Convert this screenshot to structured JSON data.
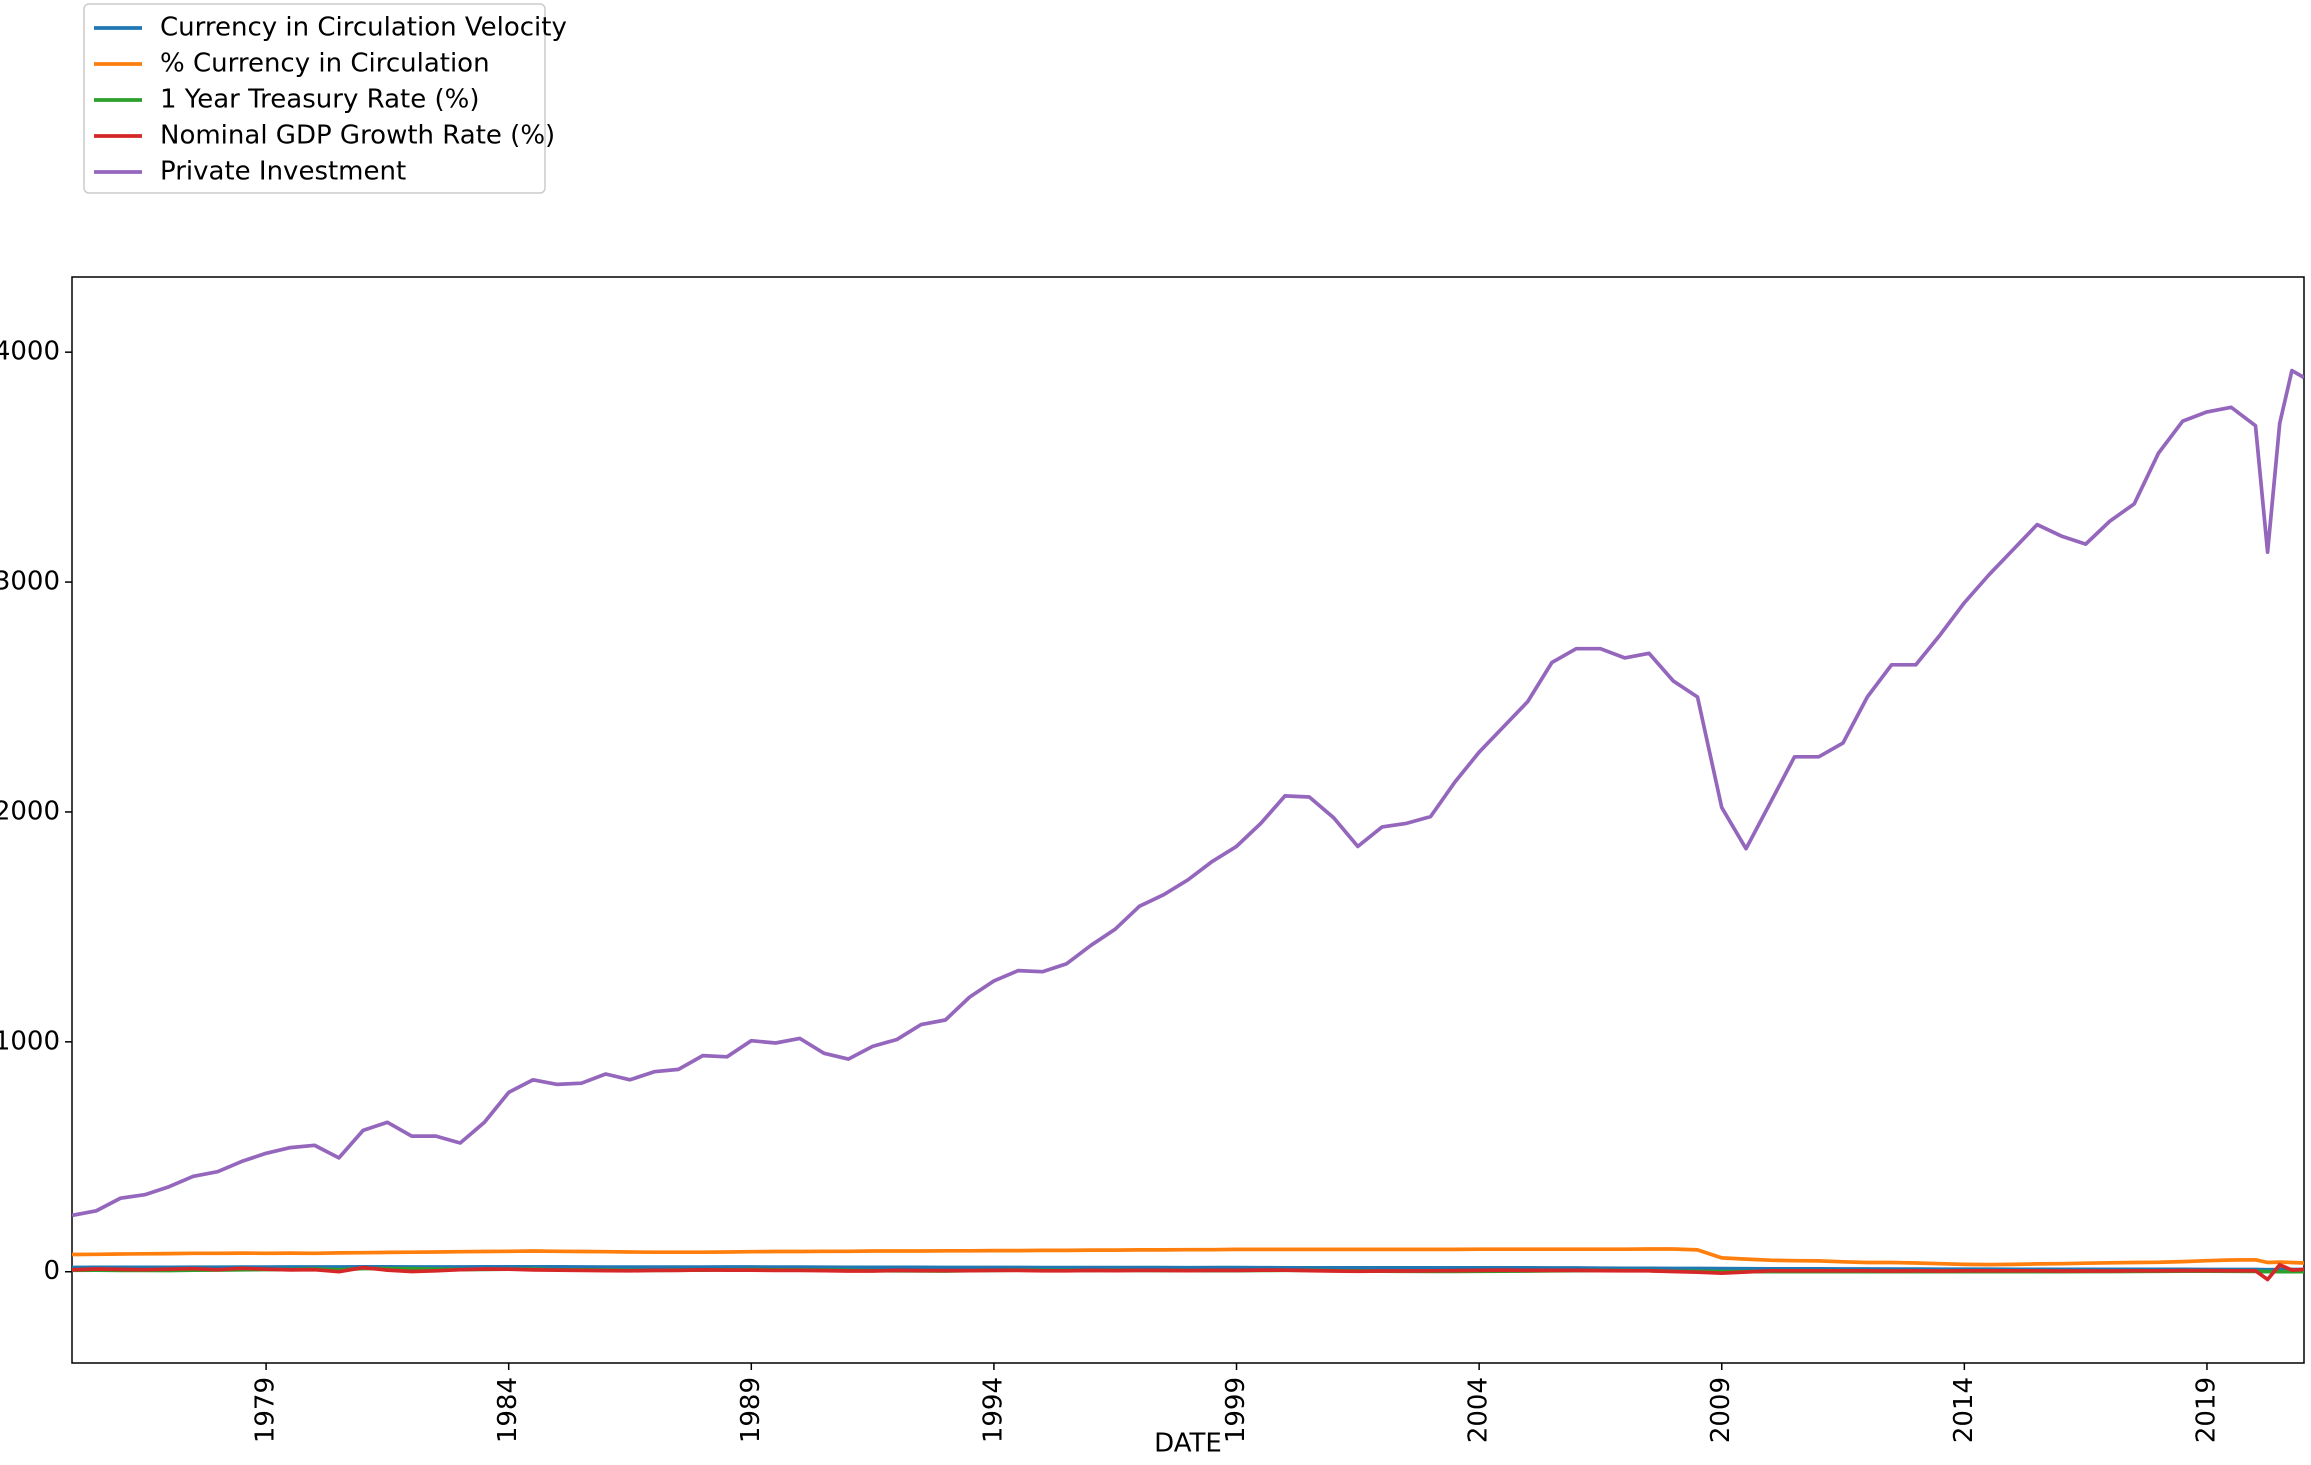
{
  "chart_data": {
    "type": "line",
    "x_label": "DATE",
    "legend": "upper left",
    "x": [
      1975,
      1975.5,
      1976,
      1976.5,
      1977,
      1977.5,
      1978,
      1978.5,
      1979,
      1979.5,
      1980,
      1980.5,
      1981,
      1981.5,
      1982,
      1982.5,
      1983,
      1983.5,
      1984,
      1984.5,
      1985,
      1985.5,
      1986,
      1986.5,
      1987,
      1987.5,
      1988,
      1988.5,
      1989,
      1989.5,
      1990,
      1990.5,
      1991,
      1991.5,
      1992,
      1992.5,
      1993,
      1993.5,
      1994,
      1994.5,
      1995,
      1995.5,
      1996,
      1996.5,
      1997,
      1997.5,
      1998,
      1998.5,
      1999,
      1999.5,
      2000,
      2000.5,
      2001,
      2001.5,
      2002,
      2002.5,
      2003,
      2003.5,
      2004,
      2004.5,
      2005,
      2005.5,
      2006,
      2006.5,
      2007,
      2007.5,
      2008,
      2008.5,
      2009,
      2009.5,
      2010,
      2010.5,
      2011,
      2011.5,
      2012,
      2012.5,
      2013,
      2013.5,
      2014,
      2014.5,
      2015,
      2015.5,
      2016,
      2016.5,
      2017,
      2017.5,
      2018,
      2018.5,
      2019,
      2019.5,
      2020,
      2020.25,
      2020.5,
      2020.75,
      2021
    ],
    "series": [
      {
        "name": "Currency in Circulation Velocity",
        "color": "#1f77b4",
        "values": [
          18.5,
          18.7,
          19,
          19.2,
          19.5,
          19.7,
          19.9,
          20.1,
          20.3,
          20.5,
          20.6,
          20.5,
          20.9,
          21,
          20.6,
          20.4,
          20.6,
          21,
          21.2,
          21.1,
          20.9,
          20.6,
          20.3,
          20.1,
          20,
          20.2,
          20.3,
          20.5,
          20.4,
          20.2,
          20,
          19.7,
          19.4,
          19.2,
          18.9,
          18.7,
          18.5,
          18.6,
          18.5,
          18.2,
          18,
          17.9,
          17.9,
          18,
          18.1,
          18,
          17.7,
          17.8,
          17.8,
          17.5,
          17.2,
          16.9,
          16.8,
          16.7,
          16.6,
          16.6,
          16.7,
          16.7,
          16.6,
          16.6,
          16.5,
          16.4,
          16.1,
          15.4,
          14.6,
          14.4,
          14.2,
          14,
          13.6,
          13.3,
          12.9,
          12.6,
          12.2,
          12,
          11.7,
          11.5,
          11.3,
          11.1,
          11,
          10.9,
          10.8,
          10.7,
          10.5,
          10.4,
          10.3,
          10.2,
          10.1,
          10,
          9.9,
          9.8,
          9.7,
          8.9,
          9.5,
          9.5,
          9.3
        ]
      },
      {
        "name": "% Currency in Circulation",
        "color": "#ff7f0e",
        "values": [
          75,
          76,
          77,
          78,
          79,
          80,
          80,
          81,
          80,
          81,
          80,
          82,
          83,
          84,
          85,
          86,
          87,
          88,
          89,
          90,
          89,
          88,
          87,
          86,
          85,
          85,
          85,
          86,
          87,
          88,
          88,
          89,
          89,
          90,
          90,
          90,
          91,
          91,
          92,
          92,
          93,
          93,
          94,
          94,
          95,
          95,
          96,
          96,
          97,
          97,
          97,
          97,
          97,
          97,
          97,
          97,
          97,
          97,
          98,
          98,
          98,
          98,
          98,
          98,
          98,
          99,
          99,
          95,
          60,
          55,
          50,
          48,
          47,
          43,
          40,
          40,
          38,
          35,
          32,
          31,
          32,
          34,
          35,
          37,
          39,
          40,
          41,
          44,
          48,
          51,
          52,
          40,
          42,
          40,
          38
        ]
      },
      {
        "name": "1 Year Treasury Rate (%)",
        "color": "#2ca02c",
        "values": [
          6.3,
          6.9,
          5.6,
          5.8,
          5.4,
          6.6,
          7.4,
          8.6,
          9.7,
          9.5,
          12,
          8.9,
          14,
          13.5,
          13,
          11.6,
          9.5,
          10.2,
          11.2,
          11.3,
          8.5,
          8,
          7,
          6.3,
          5.8,
          6.9,
          7,
          8.4,
          9.1,
          8.4,
          7.7,
          7.2,
          6.2,
          4.5,
          4,
          3.5,
          3.3,
          4.5,
          5.8,
          7.1,
          5.9,
          5.3,
          5.5,
          5.6,
          5.6,
          5.5,
          5,
          4.8,
          4.8,
          5.7,
          6.2,
          6.2,
          4.6,
          3.4,
          2.2,
          1.9,
          1.3,
          1.3,
          1.9,
          2.8,
          3.3,
          4,
          4.8,
          5.2,
          5,
          4.5,
          2.1,
          1.7,
          0.6,
          0.5,
          0.4,
          0.3,
          0.3,
          0.2,
          0.2,
          0.2,
          0.2,
          0.1,
          0.1,
          0.1,
          0.2,
          0.3,
          0.6,
          0.8,
          1.2,
          1.6,
          2.1,
          2.6,
          2.7,
          2,
          1.5,
          0.2,
          0.1,
          0.1,
          0.1
        ]
      },
      {
        "name": "Nominal GDP Growth Rate (%)",
        "color": "#d62728",
        "values": [
          8,
          12,
          10,
          9,
          11,
          13,
          9,
          15,
          11,
          8,
          9,
          0,
          18,
          7,
          1,
          4,
          9,
          12,
          11,
          8,
          7,
          6,
          5,
          4,
          6,
          6,
          8,
          7,
          7,
          6,
          6,
          5,
          3,
          3,
          6,
          5,
          5,
          5,
          6,
          6,
          4,
          4,
          6,
          5,
          6,
          6,
          5,
          6,
          6,
          7,
          7,
          5,
          3,
          2,
          3,
          3,
          4,
          5,
          6,
          7,
          6,
          6,
          6,
          5,
          4,
          4,
          1,
          -2,
          -6,
          -1,
          4,
          4,
          4,
          4,
          4,
          3,
          4,
          3,
          4,
          4,
          4,
          4,
          3,
          3,
          3,
          4,
          4,
          5,
          5,
          4,
          4,
          -34,
          30,
          7,
          10
        ]
      },
      {
        "name": "Private Investment",
        "color": "#9467bd",
        "values": [
          245,
          265,
          320,
          335,
          370,
          415,
          435,
          480,
          515,
          540,
          550,
          495,
          615,
          650,
          590,
          590,
          560,
          650,
          780,
          835,
          815,
          820,
          860,
          835,
          870,
          880,
          940,
          935,
          1005,
          995,
          1015,
          950,
          925,
          980,
          1010,
          1075,
          1095,
          1195,
          1265,
          1310,
          1305,
          1340,
          1420,
          1490,
          1590,
          1640,
          1705,
          1785,
          1850,
          1950,
          2070,
          2065,
          1975,
          1850,
          1935,
          1950,
          1980,
          2130,
          2260,
          2370,
          2480,
          2650,
          2710,
          2710,
          2670,
          2690,
          2570,
          2500,
          2020,
          1840,
          2040,
          2240,
          2240,
          2300,
          2500,
          2640,
          2640,
          2770,
          2910,
          3030,
          3140,
          3250,
          3200,
          3165,
          3265,
          3340,
          3560,
          3700,
          3740,
          3760,
          3680,
          3130,
          3690,
          3920,
          3890
        ]
      }
    ],
    "xlim": [
      1975,
      2021
    ],
    "xticks": [
      1979,
      1984,
      1989,
      1994,
      1999,
      2004,
      2009,
      2014,
      2019
    ],
    "ylim": [
      -397,
      4327
    ],
    "yticks": [
      0,
      1000,
      2000,
      3000,
      4000
    ]
  }
}
